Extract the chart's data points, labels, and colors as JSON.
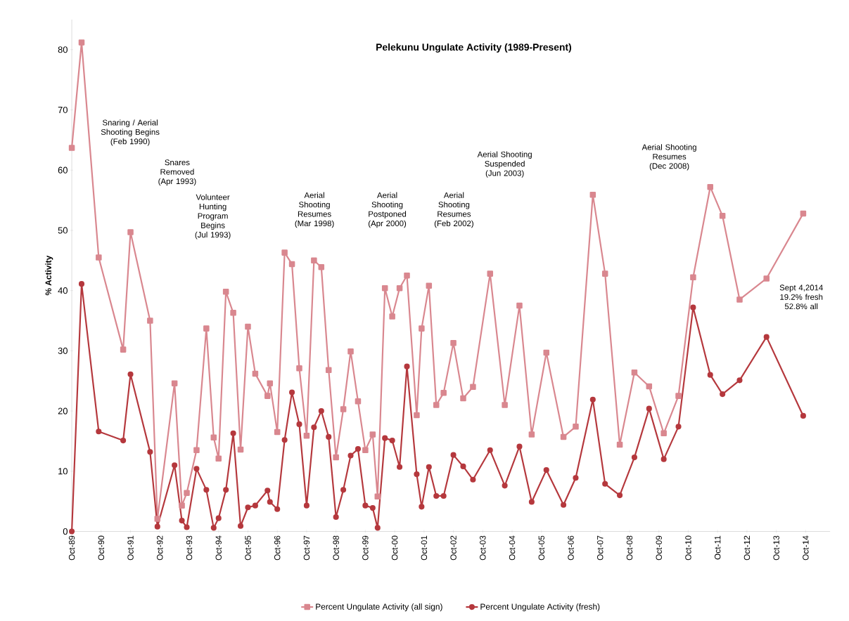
{
  "chart_data": {
    "type": "line",
    "title": "Pelekunu Ungulate Activity (1989-Present)",
    "ylabel": "% Activity",
    "x": [
      "1989-10",
      "1990-02",
      "1990-09",
      "1991-07",
      "1991-10",
      "1992-06",
      "1992-09",
      "1993-04",
      "1993-07",
      "1993-09",
      "1994-01",
      "1994-05",
      "1994-08",
      "1994-10",
      "1995-01",
      "1995-04",
      "1995-07",
      "1995-10",
      "1996-01",
      "1996-06",
      "1996-07",
      "1996-10",
      "1997-01",
      "1997-04",
      "1997-07",
      "1997-10",
      "1998-01",
      "1998-04",
      "1998-07",
      "1998-10",
      "1999-01",
      "1999-04",
      "1999-07",
      "1999-10",
      "2000-01",
      "2000-03",
      "2000-06",
      "2000-09",
      "2000-12",
      "2001-03",
      "2001-07",
      "2001-09",
      "2001-12",
      "2002-03",
      "2002-06",
      "2002-10",
      "2003-02",
      "2003-06",
      "2004-01",
      "2004-07",
      "2005-01",
      "2005-06",
      "2005-12",
      "2006-07",
      "2006-12",
      "2007-07",
      "2007-12",
      "2008-06",
      "2008-12",
      "2009-06",
      "2009-12",
      "2010-06",
      "2010-12",
      "2011-07",
      "2011-12",
      "2012-07",
      "2013-06",
      "2014-09"
    ],
    "series": [
      {
        "name": "Percent Ungulate Activity (all sign)",
        "color": "#d9878f",
        "marker": "square",
        "values": [
          63.7,
          81.2,
          45.5,
          30.2,
          49.7,
          35.0,
          2.1,
          24.6,
          4.3,
          6.4,
          13.5,
          33.7,
          15.6,
          12.1,
          39.8,
          36.3,
          13.6,
          34.0,
          26.2,
          22.5,
          24.6,
          16.5,
          46.3,
          44.4,
          27.1,
          15.9,
          45.0,
          43.9,
          26.8,
          12.3,
          20.3,
          29.9,
          21.6,
          13.5,
          16.1,
          5.8,
          40.4,
          35.7,
          40.4,
          42.5,
          19.3,
          33.7,
          40.8,
          21.0,
          23.0,
          31.3,
          22.1,
          24.0,
          42.8,
          21.0,
          37.5,
          16.1,
          29.7,
          15.7,
          17.4,
          55.9,
          42.8,
          14.4,
          26.4,
          24.1,
          16.3,
          22.5,
          42.2,
          57.2,
          52.4,
          38.5,
          42.0,
          52.8
        ]
      },
      {
        "name": "Percent Ungulate Activity (fresh)",
        "color": "#b5383d",
        "marker": "circle",
        "values": [
          0,
          41.1,
          16.6,
          15.1,
          26.1,
          13.2,
          0.8,
          11.0,
          1.8,
          0.7,
          10.4,
          6.9,
          0.6,
          2.2,
          6.9,
          16.3,
          0.9,
          4.0,
          4.3,
          6.8,
          4.9,
          3.7,
          15.2,
          23.1,
          17.8,
          4.3,
          17.3,
          20.0,
          15.7,
          2.4,
          6.9,
          12.6,
          13.7,
          4.3,
          3.9,
          0.6,
          15.5,
          15.1,
          10.7,
          27.4,
          9.5,
          4.1,
          10.7,
          5.9,
          5.9,
          12.7,
          10.8,
          8.6,
          13.5,
          7.6,
          14.1,
          4.9,
          10.2,
          4.4,
          8.9,
          21.9,
          7.9,
          6.0,
          12.3,
          20.4,
          12.0,
          17.4,
          37.2,
          26.0,
          22.8,
          25.1,
          32.3,
          19.2
        ]
      }
    ],
    "xlim": [
      "1989-10",
      "2015-08"
    ],
    "xticks": [
      {
        "value": "1989-10",
        "label": "Oct-89"
      },
      {
        "value": "1990-10",
        "label": "Oct-90"
      },
      {
        "value": "1991-10",
        "label": "Oct-91"
      },
      {
        "value": "1992-10",
        "label": "Oct-92"
      },
      {
        "value": "1993-10",
        "label": "Oct-93"
      },
      {
        "value": "1994-10",
        "label": "Oct-94"
      },
      {
        "value": "1995-10",
        "label": "Oct-95"
      },
      {
        "value": "1996-10",
        "label": "Oct-96"
      },
      {
        "value": "1997-10",
        "label": "Oct-97"
      },
      {
        "value": "1998-10",
        "label": "Oct-98"
      },
      {
        "value": "1999-10",
        "label": "Oct-99"
      },
      {
        "value": "2000-10",
        "label": "Oct-00"
      },
      {
        "value": "2001-10",
        "label": "Oct-01"
      },
      {
        "value": "2002-10",
        "label": "Oct-02"
      },
      {
        "value": "2003-10",
        "label": "Oct-03"
      },
      {
        "value": "2004-10",
        "label": "Oct-04"
      },
      {
        "value": "2005-10",
        "label": "Oct-05"
      },
      {
        "value": "2006-10",
        "label": "Oct-06"
      },
      {
        "value": "2007-10",
        "label": "Oct-07"
      },
      {
        "value": "2008-10",
        "label": "Oct-08"
      },
      {
        "value": "2009-10",
        "label": "Oct-09"
      },
      {
        "value": "2010-10",
        "label": "Oct-10"
      },
      {
        "value": "2011-10",
        "label": "Oct-11"
      },
      {
        "value": "2012-10",
        "label": "Oct-12"
      },
      {
        "value": "2013-10",
        "label": "Oct-13"
      },
      {
        "value": "2014-10",
        "label": "Oct-14"
      }
    ],
    "ylim": [
      0,
      85
    ],
    "yticks": [
      0,
      10,
      20,
      30,
      40,
      50,
      60,
      70,
      80
    ],
    "legend": "bottom",
    "line_style": "solid",
    "annotations": [
      "Snaring / Aerial Shooting Begins (Feb 1990)",
      "Snares Removed (Apr 1993)",
      "Volunteer Hunting Program Begins (Jul 1993)",
      "Aerial Shooting Resumes (Mar 1998)",
      "Aerial Shooting Postponed (Apr 2000)",
      "Aerial Shooting Resumes (Feb 2002)",
      "Aerial Shooting Suspended (Jun 2003)",
      "Aerial Shooting Resumes (Dec 2008)",
      "Sept 4,2014 19.2% fresh 52.8% all"
    ]
  }
}
